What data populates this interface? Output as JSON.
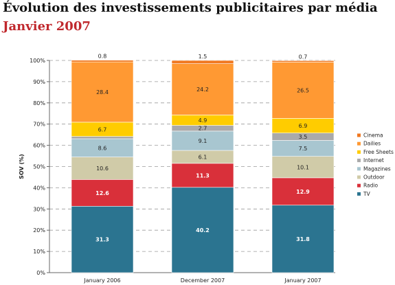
{
  "chart_data": {
    "type": "bar",
    "stacked": true,
    "title": "Évolution des investissements publicitaires par média",
    "subtitle": "Janvier 2007",
    "ylabel": "SOV (%)",
    "xlabel": "",
    "ylim": [
      0,
      100
    ],
    "yticks": [
      "0%",
      "10%",
      "20%",
      "30%",
      "40%",
      "50%",
      "60%",
      "70%",
      "80%",
      "90%",
      "100%"
    ],
    "grid": true,
    "legend_position": "right",
    "categories": [
      "January 2006",
      "December 2007",
      "January 2007"
    ],
    "series": [
      {
        "name": "TV",
        "color": "#2b7490",
        "text_color": "#ffffff",
        "values": [
          31.3,
          40.2,
          31.8
        ]
      },
      {
        "name": "Radio",
        "color": "#d9303a",
        "text_color": "#ffffff",
        "values": [
          12.6,
          11.3,
          12.9
        ]
      },
      {
        "name": "Outdoor",
        "color": "#d0cba8",
        "text_color": "#222222",
        "values": [
          10.6,
          6.1,
          10.1
        ]
      },
      {
        "name": "Magazines",
        "color": "#a8c6d0",
        "text_color": "#222222",
        "values": [
          8.6,
          9.1,
          7.5
        ]
      },
      {
        "name": "Internet",
        "color": "#aaaaaa",
        "text_color": "#222222",
        "values": [
          1.1,
          2.7,
          3.5
        ]
      },
      {
        "name": "Free Sheets",
        "color": "#ffcc00",
        "text_color": "#222222",
        "values": [
          6.7,
          4.9,
          6.9
        ]
      },
      {
        "name": "Dailies",
        "color": "#ff9933",
        "text_color": "#222222",
        "values": [
          28.4,
          24.2,
          26.5
        ]
      },
      {
        "name": "Cinema",
        "color": "#f07820",
        "text_color": "#222222",
        "values": [
          0.8,
          1.5,
          0.7
        ]
      }
    ]
  }
}
